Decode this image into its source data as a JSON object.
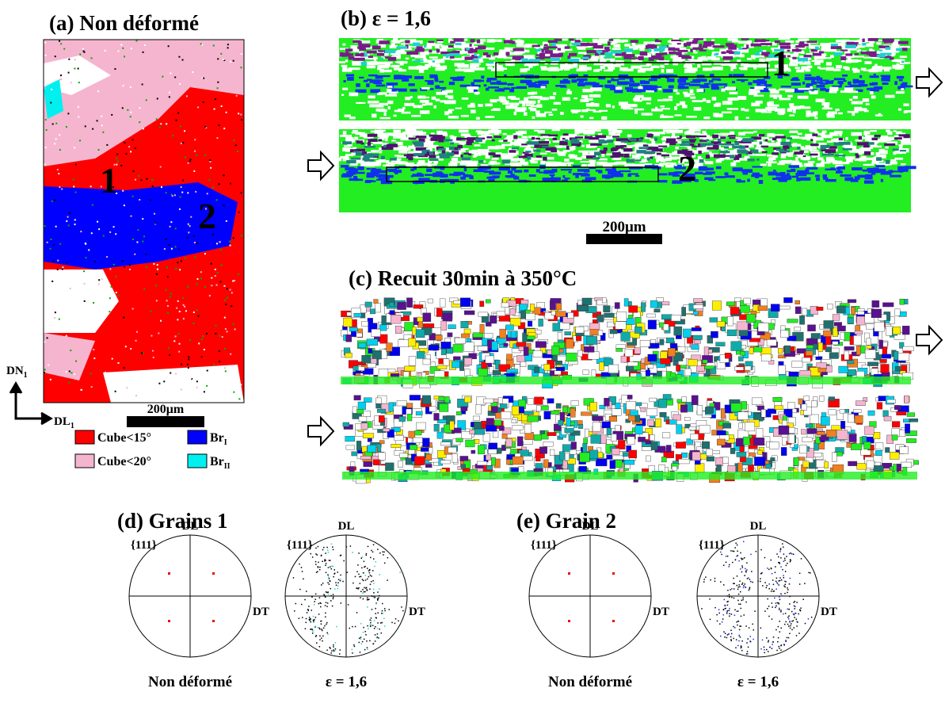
{
  "panel_a": {
    "title": "(a) Non déformé",
    "grain_labels": [
      "1",
      "2"
    ],
    "axes": {
      "dn": "DN",
      "dn_sub": "1",
      "dl": "DL",
      "dl_sub": "1"
    },
    "scale_bar": "200μm",
    "legend": [
      {
        "label": "Cube<15°",
        "color": "#ff0000"
      },
      {
        "label": "Cube<20°",
        "color": "#f5b5cf"
      },
      {
        "label": "Br",
        "sub": "I",
        "color": "#0000ff"
      },
      {
        "label": "Br",
        "sub": "II",
        "color": "#00f0f0"
      }
    ]
  },
  "panel_b": {
    "title": "(b) ε = 1,6",
    "grain_labels": [
      "1",
      "2"
    ],
    "scale_bar": "200μm"
  },
  "panel_c": {
    "title": "(c) Recuit 30min à 350°C"
  },
  "panel_d": {
    "title": "(d) Grains 1",
    "pole_figures": [
      {
        "family": "{111}",
        "top": "DL",
        "right": "DT",
        "caption": "Non déformé"
      },
      {
        "family": "{111}",
        "top": "DL",
        "right": "DT",
        "caption": "ε = 1,6"
      }
    ]
  },
  "panel_e": {
    "title": "(e) Grain 2",
    "pole_figures": [
      {
        "family": "{111}",
        "top": "DL",
        "right": "DT",
        "caption": "Non déformé"
      },
      {
        "family": "{111}",
        "top": "DL",
        "right": "DT",
        "caption": "ε = 1,6"
      }
    ]
  }
}
